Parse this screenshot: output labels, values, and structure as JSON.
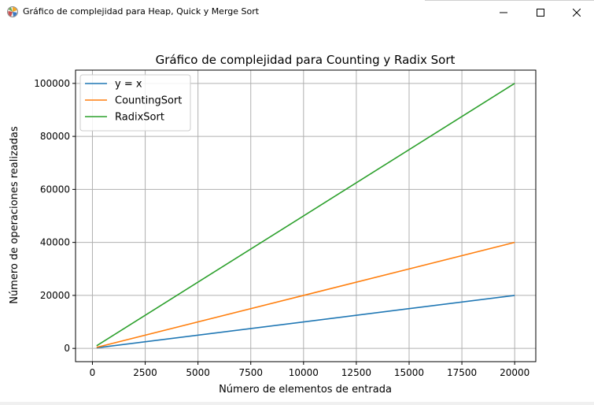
{
  "window": {
    "title": "Gráfico de complejidad para Heap, Quick y Merge Sort",
    "icon": "matplotlib-figure-icon",
    "controls": [
      "minimize-icon",
      "maximize-icon",
      "close-icon"
    ]
  },
  "chart_data": {
    "type": "line",
    "title": "Gráfico de complejidad para Counting y Radix Sort",
    "xlabel": "Número de elementos de entrada",
    "ylabel": "Número de operaciones realizadas",
    "xlim": [
      -800,
      21000
    ],
    "ylim": [
      -5000,
      105000
    ],
    "xticks": [
      0,
      2500,
      5000,
      7500,
      10000,
      12500,
      15000,
      17500,
      20000
    ],
    "yticks": [
      0,
      20000,
      40000,
      60000,
      80000,
      100000
    ],
    "grid": true,
    "legend_position": "upper left",
    "series": [
      {
        "name": "y = x",
        "color": "#1f77b4",
        "x": [
          200,
          20000
        ],
        "y": [
          200,
          20000
        ]
      },
      {
        "name": "CountingSort",
        "color": "#ff7f0e",
        "x": [
          200,
          20000
        ],
        "y": [
          400,
          40000
        ]
      },
      {
        "name": "RadixSort",
        "color": "#2ca02c",
        "x": [
          200,
          20000
        ],
        "y": [
          1000,
          100000
        ]
      }
    ]
  }
}
